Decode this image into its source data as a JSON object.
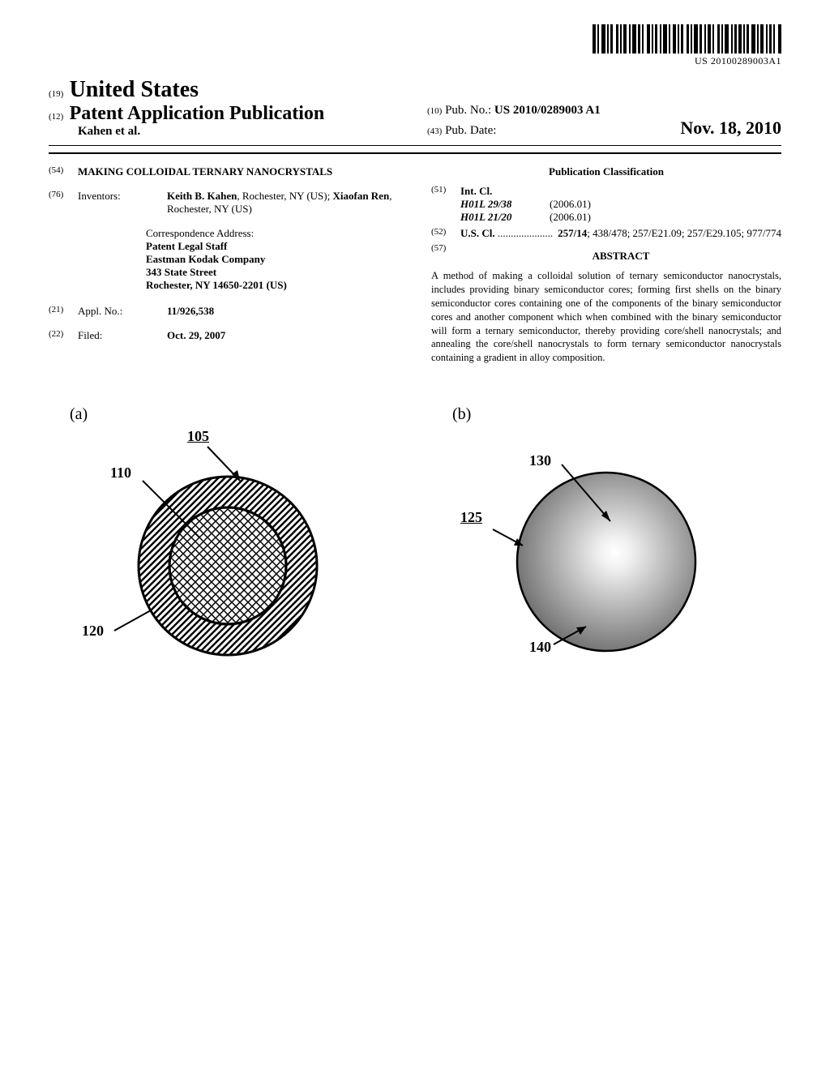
{
  "barcode_label": "US 20100289003A1",
  "country_code": "(19)",
  "country": "United States",
  "doc_type_code": "(12)",
  "doc_type": "Patent Application Publication",
  "authors": "Kahen et al.",
  "pub_no_code": "(10)",
  "pub_no_label": "Pub. No.:",
  "pub_no": "US 2010/0289003 A1",
  "pub_date_code": "(43)",
  "pub_date_label": "Pub. Date:",
  "pub_date": "Nov. 18, 2010",
  "title_code": "(54)",
  "title": "MAKING COLLOIDAL TERNARY NANOCRYSTALS",
  "inventors_code": "(76)",
  "inventors_label": "Inventors:",
  "inventors": "Keith B. Kahen, Rochester, NY (US); Xiaofan Ren, Rochester, NY (US)",
  "corr_label": "Correspondence Address:",
  "corr_lines": [
    "Patent Legal Staff",
    "Eastman Kodak Company",
    "343 State Street",
    "Rochester, NY 14650-2201 (US)"
  ],
  "appl_no_code": "(21)",
  "appl_no_label": "Appl. No.:",
  "appl_no": "11/926,538",
  "filed_code": "(22)",
  "filed_label": "Filed:",
  "filed": "Oct. 29, 2007",
  "class_heading": "Publication Classification",
  "intcl_code": "(51)",
  "intcl_label": "Int. Cl.",
  "intcl": [
    {
      "code": "H01L 29/38",
      "year": "(2006.01)"
    },
    {
      "code": "H01L 21/20",
      "year": "(2006.01)"
    }
  ],
  "uscl_code": "(52)",
  "uscl_label": "U.S. Cl.",
  "uscl_dots": " .....................",
  "uscl": "257/14; 438/478; 257/E21.09; 257/E29.105; 977/774",
  "abstract_code": "(57)",
  "abstract_heading": "ABSTRACT",
  "abstract": "A method of making a colloidal solution of ternary semiconductor nanocrystals, includes providing binary semiconductor cores; forming first shells on the binary semiconductor cores containing one of the components of the binary semiconductor cores and another component which when combined with the binary semiconductor will form a ternary semiconductor, thereby providing core/shell nanocrystals; and annealing the core/shell nanocrystals to form ternary semiconductor nanocrystals containing a gradient in alloy composition.",
  "figures": {
    "a": {
      "label": "(a)",
      "refs": {
        "assembly": "105",
        "core": "110",
        "shell": "120"
      },
      "core_radius": 72,
      "shell_radius": 110,
      "outline_color": "#000000",
      "hatch_spacing": 7
    },
    "b": {
      "label": "(b)",
      "refs": {
        "assembly": "125",
        "inner": "130",
        "outer": "140"
      },
      "radius": 110,
      "outline_color": "#000000",
      "gradient_inner": "#ffffff",
      "gradient_outer": "#6a6a6a"
    }
  }
}
